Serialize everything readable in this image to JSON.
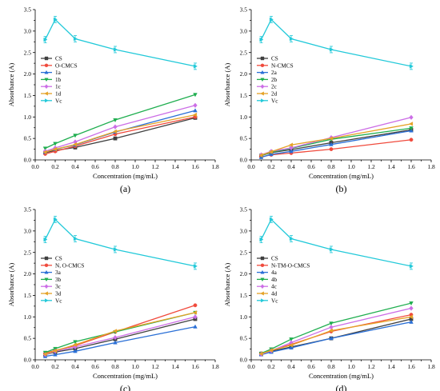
{
  "colors": {
    "CS": "#404040",
    "s2": "#f04a3c",
    "s3": "#2a6fd6",
    "s4": "#1fae4f",
    "s5": "#cc6ee6",
    "s6": "#e5a227",
    "Vc": "#22c9d9"
  },
  "chart_data": [
    {
      "type": "line",
      "panel_label": "(a)",
      "xlabel": "Concentration (mg/mL)",
      "ylabel": "Absorbance (A)",
      "xlim": [
        0.0,
        1.8
      ],
      "ylim": [
        0.0,
        3.5
      ],
      "x_ticks": [
        "0.0",
        "0.2",
        "0.4",
        "0.6",
        "0.8",
        "1.0",
        "1.2",
        "1.4",
        "1.6",
        "1.8"
      ],
      "y_ticks": [
        "0.0",
        "0.5",
        "1.0",
        "1.5",
        "2.0",
        "2.5",
        "3.0",
        "3.5"
      ],
      "legend_position": "left-middle",
      "x": [
        0.1,
        0.2,
        0.4,
        0.8,
        1.6
      ],
      "series": [
        {
          "name": "CS",
          "marker": "square",
          "values": [
            0.17,
            0.22,
            0.29,
            0.5,
            0.98
          ]
        },
        {
          "name": "O-CMCS",
          "marker": "circle",
          "values": [
            0.14,
            0.2,
            0.32,
            0.6,
            1.0
          ]
        },
        {
          "name": "1a",
          "marker": "triangle-up",
          "values": [
            0.18,
            0.25,
            0.35,
            0.65,
            1.15
          ]
        },
        {
          "name": "1b",
          "marker": "triangle-down",
          "values": [
            0.27,
            0.38,
            0.57,
            0.93,
            1.52
          ]
        },
        {
          "name": "1c",
          "marker": "diamond",
          "values": [
            0.2,
            0.28,
            0.42,
            0.77,
            1.27
          ]
        },
        {
          "name": "1d",
          "marker": "triangle-left",
          "values": [
            0.18,
            0.25,
            0.36,
            0.66,
            1.05
          ]
        },
        {
          "name": "Vc",
          "marker": "triangle-right",
          "values": [
            2.8,
            3.27,
            2.82,
            2.57,
            2.18
          ]
        }
      ]
    },
    {
      "type": "line",
      "panel_label": "(b)",
      "xlabel": "Concentration (mg/mL)",
      "ylabel": "Absorbance (A)",
      "xlim": [
        0.0,
        1.8
      ],
      "ylim": [
        0.0,
        3.5
      ],
      "x_ticks": [
        "0.0",
        "0.2",
        "0.4",
        "0.6",
        "0.8",
        "1.0",
        "1.2",
        "1.4",
        "1.6",
        "1.8"
      ],
      "y_ticks": [
        "0.0",
        "0.5",
        "1.0",
        "1.5",
        "2.0",
        "2.5",
        "3.0",
        "3.5"
      ],
      "legend_position": "left-middle",
      "x": [
        0.1,
        0.2,
        0.4,
        0.8,
        1.6
      ],
      "series": [
        {
          "name": "CS",
          "marker": "square",
          "values": [
            0.1,
            0.17,
            0.24,
            0.4,
            0.7
          ]
        },
        {
          "name": "N-CMCS",
          "marker": "circle",
          "values": [
            0.07,
            0.12,
            0.16,
            0.25,
            0.47
          ]
        },
        {
          "name": "2a",
          "marker": "triangle-up",
          "values": [
            0.06,
            0.13,
            0.2,
            0.36,
            0.68
          ]
        },
        {
          "name": "2b",
          "marker": "triangle-down",
          "values": [
            0.1,
            0.18,
            0.27,
            0.48,
            0.74
          ]
        },
        {
          "name": "2c",
          "marker": "diamond",
          "values": [
            0.12,
            0.2,
            0.28,
            0.52,
            0.99
          ]
        },
        {
          "name": "2d",
          "marker": "triangle-left",
          "values": [
            0.11,
            0.19,
            0.35,
            0.5,
            0.84
          ]
        },
        {
          "name": "Vc",
          "marker": "triangle-right",
          "values": [
            2.8,
            3.27,
            2.82,
            2.57,
            2.18
          ]
        }
      ]
    },
    {
      "type": "line",
      "panel_label": "(c)",
      "xlabel": "Concentration (mg/mL)",
      "ylabel": "Absorbance (A)",
      "xlim": [
        0.0,
        1.8
      ],
      "ylim": [
        0.0,
        3.5
      ],
      "x_ticks": [
        "0.0",
        "0.2",
        "0.4",
        "0.6",
        "0.8",
        "1.0",
        "1.2",
        "1.4",
        "1.6",
        "1.8"
      ],
      "y_ticks": [
        "0.0",
        "0.5",
        "1.0",
        "1.5",
        "2.0",
        "2.5",
        "3.0",
        "3.5"
      ],
      "legend_position": "left-middle",
      "x": [
        0.1,
        0.2,
        0.4,
        0.8,
        1.6
      ],
      "series": [
        {
          "name": "CS",
          "marker": "square",
          "values": [
            0.12,
            0.18,
            0.26,
            0.48,
            0.95
          ]
        },
        {
          "name": "N, O-CMCS",
          "marker": "circle",
          "values": [
            0.15,
            0.22,
            0.33,
            0.65,
            1.27
          ]
        },
        {
          "name": "3a",
          "marker": "triangle-up",
          "values": [
            0.08,
            0.12,
            0.2,
            0.4,
            0.77
          ]
        },
        {
          "name": "3b",
          "marker": "triangle-down",
          "values": [
            0.17,
            0.26,
            0.42,
            0.65,
            1.1
          ]
        },
        {
          "name": "3c",
          "marker": "diamond",
          "values": [
            0.12,
            0.2,
            0.3,
            0.52,
            1.0
          ]
        },
        {
          "name": "3d",
          "marker": "triangle-left",
          "values": [
            0.13,
            0.21,
            0.35,
            0.67,
            1.1
          ]
        },
        {
          "name": "Vc",
          "marker": "triangle-right",
          "values": [
            2.8,
            3.27,
            2.82,
            2.57,
            2.18
          ]
        }
      ]
    },
    {
      "type": "line",
      "panel_label": "(d)",
      "xlabel": "Concentration (mg/mL)",
      "ylabel": "Absorbance (A)",
      "xlim": [
        0.0,
        1.8
      ],
      "ylim": [
        0.0,
        3.5
      ],
      "x_ticks": [
        "0.0",
        "0.2",
        "0.4",
        "0.6",
        "0.8",
        "1.0",
        "1.2",
        "1.4",
        "1.6",
        "1.8"
      ],
      "y_ticks": [
        "0.0",
        "0.5",
        "1.0",
        "1.5",
        "2.0",
        "2.5",
        "3.0",
        "3.5"
      ],
      "legend_position": "left-middle",
      "x": [
        0.1,
        0.2,
        0.4,
        0.8,
        1.6
      ],
      "series": [
        {
          "name": "CS",
          "marker": "square",
          "values": [
            0.14,
            0.2,
            0.3,
            0.5,
            0.95
          ]
        },
        {
          "name": "N-TM-O-CMCS",
          "marker": "circle",
          "values": [
            0.15,
            0.22,
            0.36,
            0.66,
            1.05
          ]
        },
        {
          "name": "4a",
          "marker": "triangle-up",
          "values": [
            0.12,
            0.18,
            0.28,
            0.5,
            0.88
          ]
        },
        {
          "name": "4b",
          "marker": "triangle-down",
          "values": [
            0.15,
            0.25,
            0.48,
            0.85,
            1.32
          ]
        },
        {
          "name": "4c",
          "marker": "diamond",
          "values": [
            0.13,
            0.21,
            0.4,
            0.76,
            1.2
          ]
        },
        {
          "name": "4d",
          "marker": "triangle-left",
          "values": [
            0.14,
            0.22,
            0.34,
            0.68,
            1.0
          ]
        },
        {
          "name": "Vc",
          "marker": "triangle-right",
          "values": [
            2.8,
            3.27,
            2.82,
            2.57,
            2.18
          ]
        }
      ]
    }
  ]
}
